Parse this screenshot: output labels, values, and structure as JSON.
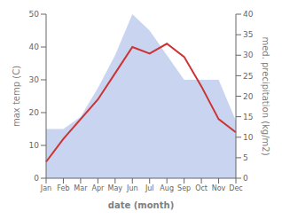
{
  "chart_data": {
    "type": "line",
    "xlabel": "date (month)",
    "ylabel": "max temp (C)",
    "y2label": "med. precipitation (kg/m2)",
    "categories": [
      "Jan",
      "Feb",
      "Mar",
      "Apr",
      "May",
      "Jun",
      "Jul",
      "Aug",
      "Sep",
      "Oct",
      "Nov",
      "Dec"
    ],
    "series": [
      {
        "type": "area",
        "axis": "y2",
        "color": "#c8d4f0",
        "values": [
          12,
          12,
          15,
          22,
          30,
          40,
          36,
          30,
          24,
          24,
          24,
          14
        ]
      },
      {
        "type": "line",
        "color": "#cc3333",
        "values": [
          5,
          12,
          18,
          24,
          32,
          40,
          38,
          41,
          37,
          28,
          18,
          14
        ]
      }
    ],
    "ylim": [
      0,
      50
    ],
    "yticks": [
      0,
      10,
      20,
      30,
      40,
      50
    ],
    "y2lim": [
      0,
      40
    ],
    "y2ticks": [
      0,
      5,
      10,
      15,
      20,
      25,
      30,
      35,
      40
    ],
    "grid": false
  }
}
